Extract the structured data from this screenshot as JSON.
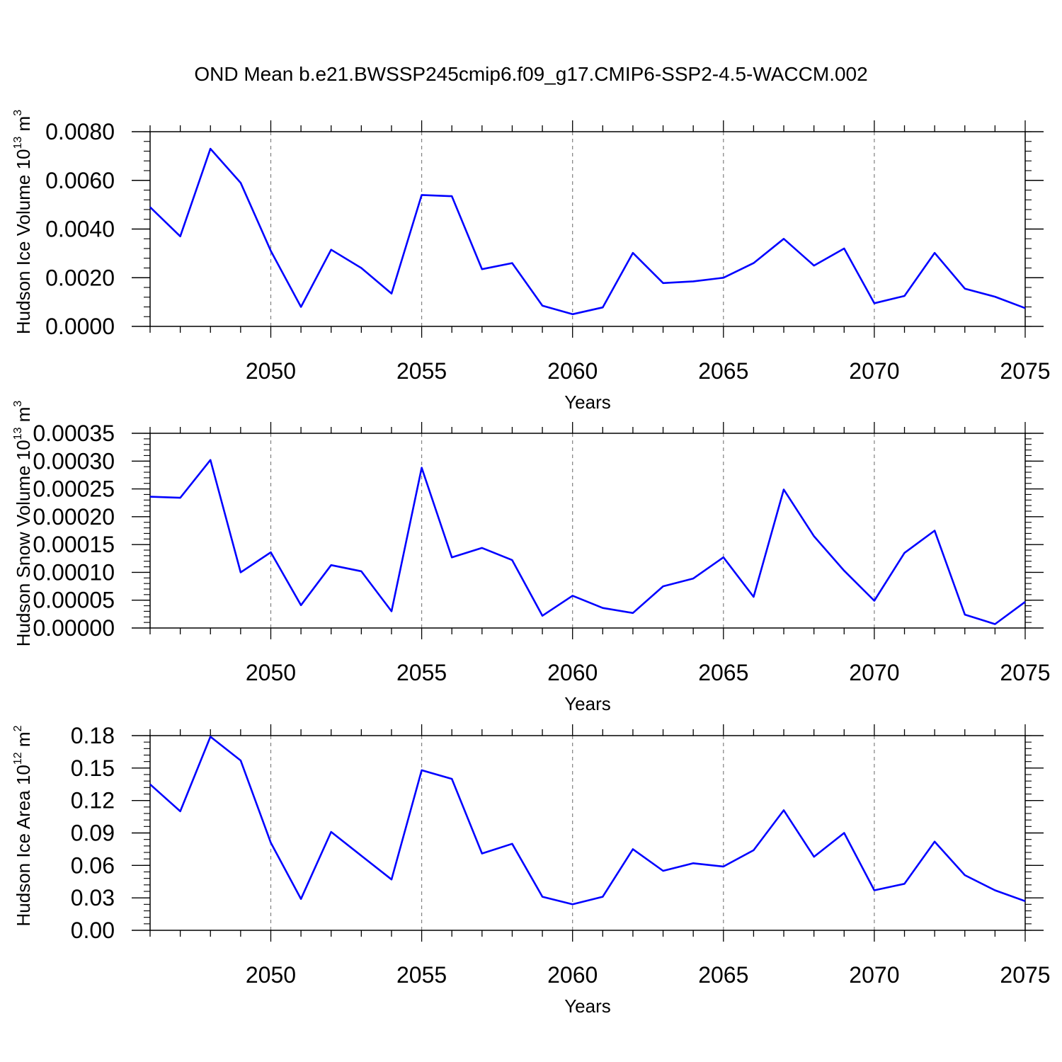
{
  "title": "OND Mean b.e21.BWSSP245cmip6.f09_g17.CMIP6-SSP2-4.5-WACCM.002",
  "chart_data": [
    {
      "type": "line",
      "xlabel": "Years",
      "ylabel": {
        "text": "Hudson Ice Volume 10",
        "sup1": "13",
        "unit": " m",
        "sup2": "3"
      },
      "xlim": [
        2046,
        2075
      ],
      "ylim": [
        0,
        0.008
      ],
      "x_ticks": [
        2050,
        2055,
        2060,
        2065,
        2070,
        2075
      ],
      "x_tick_labels": [
        "2050",
        "2055",
        "2060",
        "2065",
        "2070",
        "2075"
      ],
      "y_ticks": [
        0,
        0.002,
        0.004,
        0.006,
        0.008
      ],
      "y_tick_labels": [
        "0.0000",
        "0.0020",
        "0.0040",
        "0.0060",
        "0.0080"
      ],
      "y_minor_step": 0.0004,
      "grid": "vertical dashed at major x ticks",
      "line_color": "#0000ff",
      "x": [
        2046,
        2047,
        2048,
        2049,
        2050,
        2051,
        2052,
        2053,
        2054,
        2055,
        2056,
        2057,
        2058,
        2059,
        2060,
        2061,
        2062,
        2063,
        2064,
        2065,
        2066,
        2067,
        2068,
        2069,
        2070,
        2071,
        2072,
        2073,
        2074,
        2075
      ],
      "values": [
        0.0049,
        0.0037,
        0.0073,
        0.0059,
        0.0031,
        0.0008,
        0.00315,
        0.0024,
        0.00135,
        0.0054,
        0.00535,
        0.00235,
        0.0026,
        0.00085,
        0.0005,
        0.00078,
        0.00302,
        0.00178,
        0.00185,
        0.002,
        0.0026,
        0.0036,
        0.0025,
        0.0032,
        0.00095,
        0.00125,
        0.00302,
        0.00155,
        0.00122,
        0.00075
      ]
    },
    {
      "type": "line",
      "xlabel": "Years",
      "ylabel": {
        "text": "Hudson Snow Volume 10",
        "sup1": "13",
        "unit": " m",
        "sup2": "3"
      },
      "xlim": [
        2046,
        2075
      ],
      "ylim": [
        0,
        0.00035
      ],
      "x_ticks": [
        2050,
        2055,
        2060,
        2065,
        2070,
        2075
      ],
      "x_tick_labels": [
        "2050",
        "2055",
        "2060",
        "2065",
        "2070",
        "2075"
      ],
      "y_ticks": [
        0,
        5e-05,
        0.0001,
        0.00015,
        0.0002,
        0.00025,
        0.0003,
        0.00035
      ],
      "y_tick_labels": [
        "0.00000",
        "0.00005",
        "0.00010",
        "0.00015",
        "0.00020",
        "0.00025",
        "0.00030",
        "0.00035"
      ],
      "y_minor_step": 1e-05,
      "grid": "vertical dashed at major x ticks",
      "line_color": "#0000ff",
      "x": [
        2046,
        2047,
        2048,
        2049,
        2050,
        2051,
        2052,
        2053,
        2054,
        2055,
        2056,
        2057,
        2058,
        2059,
        2060,
        2061,
        2062,
        2063,
        2064,
        2065,
        2066,
        2067,
        2068,
        2069,
        2070,
        2071,
        2072,
        2073,
        2074,
        2075
      ],
      "values": [
        0.000236,
        0.000234,
        0.000302,
        0.0001,
        0.000136,
        4.1e-05,
        0.000113,
        0.000102,
        3e-05,
        0.000288,
        0.000127,
        0.000144,
        0.000122,
        2.2e-05,
        5.8e-05,
        3.6e-05,
        2.7e-05,
        7.5e-05,
        8.9e-05,
        0.000127,
        5.6e-05,
        0.000249,
        0.000165,
        0.000103,
        4.9e-05,
        0.000135,
        0.000175,
        2.4e-05,
        7e-06,
        4.7e-05
      ]
    },
    {
      "type": "line",
      "xlabel": "Years",
      "ylabel": {
        "text": "Hudson Ice Area 10",
        "sup1": "12",
        "unit": " m",
        "sup2": "2"
      },
      "xlim": [
        2046,
        2075
      ],
      "ylim": [
        0,
        0.18
      ],
      "x_ticks": [
        2050,
        2055,
        2060,
        2065,
        2070,
        2075
      ],
      "x_tick_labels": [
        "2050",
        "2055",
        "2060",
        "2065",
        "2070",
        "2075"
      ],
      "y_ticks": [
        0,
        0.03,
        0.06,
        0.09,
        0.12,
        0.15,
        0.18
      ],
      "y_tick_labels": [
        "0.00",
        "0.03",
        "0.06",
        "0.09",
        "0.12",
        "0.15",
        "0.18"
      ],
      "y_minor_step": 0.006,
      "grid": "vertical dashed at major x ticks",
      "line_color": "#0000ff",
      "x": [
        2046,
        2047,
        2048,
        2049,
        2050,
        2051,
        2052,
        2053,
        2054,
        2055,
        2056,
        2057,
        2058,
        2059,
        2060,
        2061,
        2062,
        2063,
        2064,
        2065,
        2066,
        2067,
        2068,
        2069,
        2070,
        2071,
        2072,
        2073,
        2074,
        2075
      ],
      "values": [
        0.135,
        0.11,
        0.179,
        0.157,
        0.081,
        0.029,
        0.091,
        0.069,
        0.047,
        0.148,
        0.14,
        0.071,
        0.08,
        0.031,
        0.024,
        0.031,
        0.075,
        0.055,
        0.062,
        0.059,
        0.074,
        0.111,
        0.068,
        0.09,
        0.037,
        0.043,
        0.082,
        0.051,
        0.037,
        0.027
      ]
    }
  ]
}
